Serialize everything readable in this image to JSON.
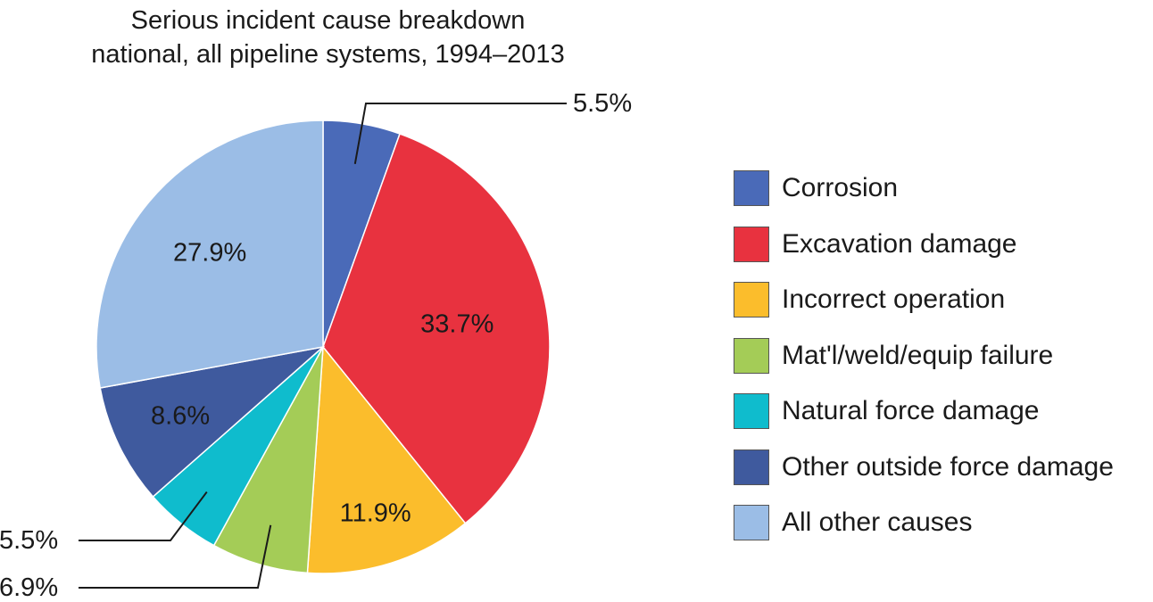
{
  "chart_data": {
    "type": "pie",
    "title": "Serious incident cause breakdown",
    "subtitle": "national, all pipeline systems, 1994–2013",
    "slices": [
      {
        "label": "Corrosion",
        "value": 5.5,
        "display": "5.5%",
        "color": "#4a6ab8"
      },
      {
        "label": "Excavation damage",
        "value": 33.7,
        "display": "33.7%",
        "color": "#e8323f"
      },
      {
        "label": "Incorrect operation",
        "value": 11.9,
        "display": "11.9%",
        "color": "#fbbd2c"
      },
      {
        "label": "Mat'l/weld/equip failure",
        "value": 6.9,
        "display": "6.9%",
        "color": "#a4cc57"
      },
      {
        "label": "Natural force damage",
        "value": 5.5,
        "display": "5.5%",
        "color": "#0fbccd"
      },
      {
        "label": "Other outside force damage",
        "value": 8.6,
        "display": "8.6%",
        "color": "#3f5a9e"
      },
      {
        "label": "All other causes",
        "value": 27.9,
        "display": "27.9%",
        "color": "#9bbde6"
      }
    ],
    "legend_position": "right"
  }
}
